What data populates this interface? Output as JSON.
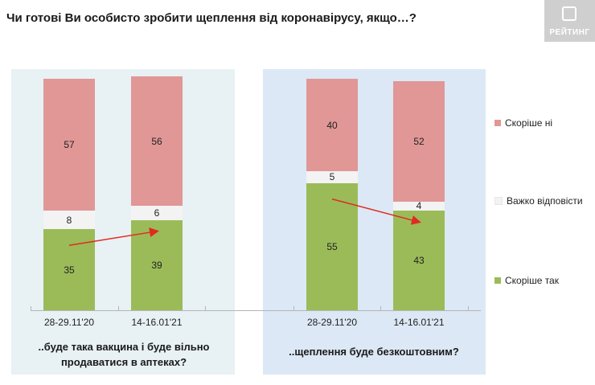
{
  "title": "Чи готові Ви особисто зробити щеплення від коронавірусу, якщо…?",
  "logo": {
    "text": "РЕЙТИНГ"
  },
  "colors": {
    "no": "#e09796",
    "hard": "#f3f3f3",
    "yes": "#9bbb59",
    "arrow": "#e02b20"
  },
  "chart_data": {
    "type": "bar",
    "stacked": true,
    "categories": [
      "28-29.11'20",
      "14-16.01'21",
      "28-29.11'20",
      "14-16.01'21"
    ],
    "groups": [
      {
        "question": "..буде така вакцина і буде вільно продаватися в аптеках?",
        "category_indices": [
          0,
          1
        ]
      },
      {
        "question": "..щеплення буде безкоштовним?",
        "category_indices": [
          2,
          3
        ]
      }
    ],
    "series": [
      {
        "name": "Скоріше так",
        "values": [
          35,
          39,
          55,
          43
        ]
      },
      {
        "name": "Важко відповісти",
        "values": [
          8,
          6,
          5,
          4
        ]
      },
      {
        "name": "Скоріше ні",
        "values": [
          57,
          56,
          40,
          52
        ]
      }
    ],
    "ylim": [
      0,
      100
    ],
    "legend": [
      "Скоріше ні",
      "Важко відповісти",
      "Скоріше так"
    ],
    "legend_position": "right",
    "grid": false
  }
}
